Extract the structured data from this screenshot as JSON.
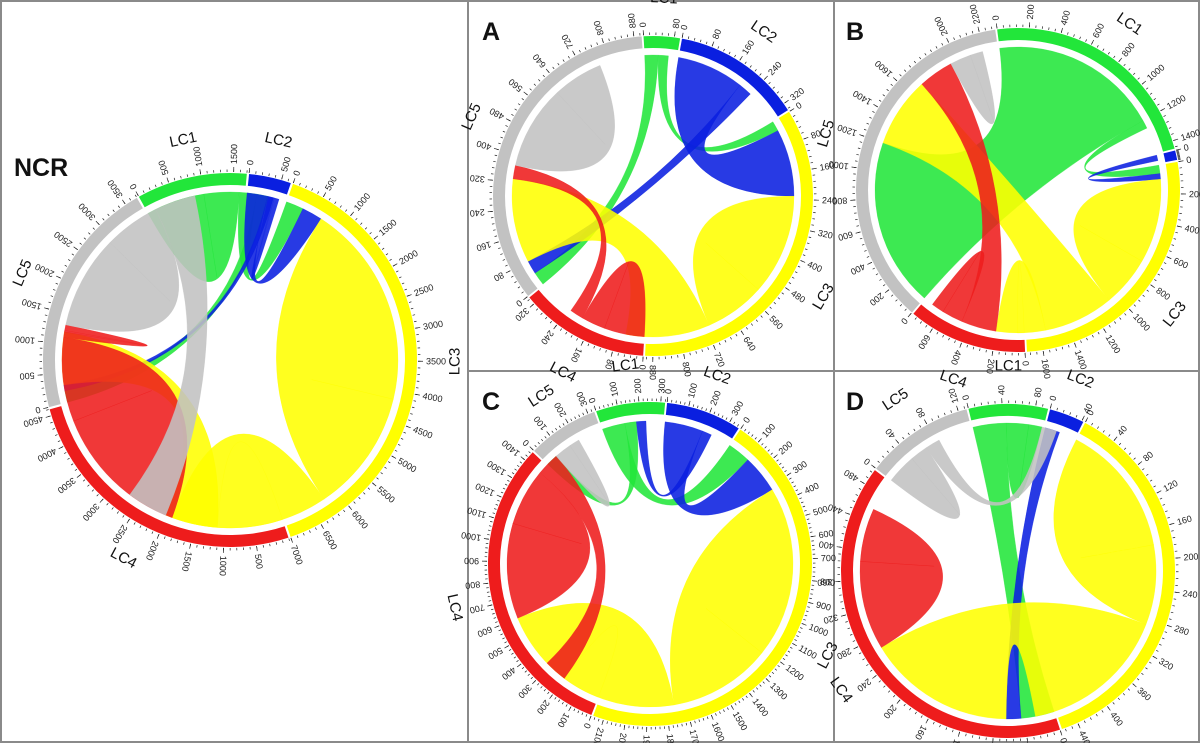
{
  "colors": {
    "LC1": "#22e63a",
    "LC2": "#0a1fe0",
    "LC3": "#ffff00",
    "LC4": "#ee1c1c",
    "LC5": "#c2c2c2",
    "frame": "#8a8a8a"
  },
  "panels": [
    {
      "id": "ncr",
      "label": "NCR",
      "segments": [
        {
          "name": "LC1",
          "total": 1700,
          "ticks": [
            0,
            500,
            1000,
            1500
          ],
          "label": "LC1"
        },
        {
          "name": "LC2",
          "total": 650,
          "ticks": [
            0,
            500
          ],
          "label": "LC2"
        },
        {
          "name": "LC3",
          "total": 7000,
          "ticks": [
            0,
            500,
            1000,
            1500,
            2000,
            2500,
            3000,
            3500,
            4000,
            4500,
            5000,
            5500,
            6000,
            6500,
            7000
          ],
          "label": "LC3"
        },
        {
          "name": "LC4",
          "total": 4600,
          "ticks": [
            500,
            1000,
            1500,
            2000,
            2500,
            3000,
            3500,
            4000,
            4500
          ],
          "label": "LC4"
        },
        {
          "name": "LC5",
          "total": 3700,
          "ticks": [
            0,
            500,
            1000,
            1500,
            2000,
            2500,
            3000,
            3500
          ],
          "label": "LC5"
        }
      ],
      "chords": [
        {
          "from": "LC1",
          "to": "LC1",
          "value": 1000
        },
        {
          "from": "LC1",
          "to": "LC3",
          "value": 300
        },
        {
          "from": "LC1",
          "to": "LC5",
          "value": 200
        },
        {
          "from": "LC2",
          "to": "LC3",
          "value": 350
        },
        {
          "from": "LC2",
          "to": "LC5",
          "value": 100
        },
        {
          "from": "LC2",
          "to": "LC1",
          "value": 100
        },
        {
          "from": "LC3",
          "to": "LC3",
          "value": 3500
        },
        {
          "from": "LC3",
          "to": "LC4",
          "value": 1900
        },
        {
          "from": "LC3",
          "to": "LC5",
          "value": 900
        },
        {
          "from": "LC4",
          "to": "LC4",
          "value": 2400
        },
        {
          "from": "LC4",
          "to": "LC5",
          "value": 120
        },
        {
          "from": "LC5",
          "to": "LC5",
          "value": 1600
        },
        {
          "from": "LC5",
          "to": "LC3",
          "value": 700
        }
      ]
    },
    {
      "id": "a",
      "label": "A",
      "segments": [
        {
          "name": "LC1",
          "total": 95,
          "ticks": [
            0,
            80
          ],
          "label": "LC1"
        },
        {
          "name": "LC2",
          "total": 340,
          "ticks": [
            0,
            80,
            160,
            240,
            320
          ],
          "label": "LC2"
        },
        {
          "name": "LC3",
          "total": 900,
          "ticks": [
            0,
            80,
            160,
            240,
            320,
            400,
            480,
            560,
            640,
            720,
            800,
            880
          ],
          "label": "LC3"
        },
        {
          "name": "LC4",
          "total": 340,
          "ticks": [
            0,
            80,
            160,
            240,
            320
          ],
          "label": "LC4"
        },
        {
          "name": "LC5",
          "total": 900,
          "ticks": [
            0,
            80,
            160,
            240,
            320,
            400,
            480,
            560,
            640,
            720,
            800,
            880
          ],
          "label": "LC5"
        }
      ],
      "chords": [
        {
          "from": "LC1",
          "to": "LC5",
          "value": 40
        },
        {
          "from": "LC1",
          "to": "LC3",
          "value": 30
        },
        {
          "from": "LC2",
          "to": "LC3",
          "value": 200
        },
        {
          "from": "LC2",
          "to": "LC5",
          "value": 40
        },
        {
          "from": "LC3",
          "to": "LC3",
          "value": 300
        },
        {
          "from": "LC3",
          "to": "LC5",
          "value": 250
        },
        {
          "from": "LC4",
          "to": "LC4",
          "value": 120
        },
        {
          "from": "LC4",
          "to": "LC5",
          "value": 40
        },
        {
          "from": "LC5",
          "to": "LC5",
          "value": 250
        }
      ]
    },
    {
      "id": "b",
      "label": "B",
      "segments": [
        {
          "name": "LC1",
          "total": 1450,
          "ticks": [
            0,
            200,
            400,
            600,
            800,
            1000,
            1200,
            1400
          ],
          "label": "LC1"
        },
        {
          "name": "LC2",
          "total": 60,
          "ticks": [
            0
          ],
          "label": "LC2"
        },
        {
          "name": "LC3",
          "total": 1700,
          "ticks": [
            0,
            200,
            400,
            600,
            800,
            1000,
            1200,
            1400,
            1600
          ],
          "label": "LC3"
        },
        {
          "name": "LC4",
          "total": 750,
          "ticks": [
            0,
            200,
            400,
            600
          ],
          "label": "LC4"
        },
        {
          "name": "LC5",
          "total": 2300,
          "ticks": [
            0,
            200,
            400,
            600,
            800,
            1000,
            1200,
            1400,
            1600,
            2000,
            2200
          ],
          "label": "LC5"
        }
      ],
      "chords": [
        {
          "from": "LC1",
          "to": "LC5",
          "value": 1200
        },
        {
          "from": "LC1",
          "to": "LC3",
          "value": 60
        },
        {
          "from": "LC2",
          "to": "LC3",
          "value": 40
        },
        {
          "from": "LC3",
          "to": "LC3",
          "value": 600
        },
        {
          "from": "LC3",
          "to": "LC5",
          "value": 500
        },
        {
          "from": "LC3",
          "to": "LC4",
          "value": 200
        },
        {
          "from": "LC4",
          "to": "LC5",
          "value": 250
        },
        {
          "from": "LC4",
          "to": "LC4",
          "value": 150
        },
        {
          "from": "LC5",
          "to": "LC5",
          "value": 150
        }
      ]
    },
    {
      "id": "c",
      "label": "C",
      "segments": [
        {
          "name": "LC1",
          "total": 320,
          "ticks": [
            0,
            100,
            200,
            300
          ],
          "label": "LC1"
        },
        {
          "name": "LC2",
          "total": 350,
          "ticks": [
            0,
            100,
            200,
            300
          ],
          "label": "LC2"
        },
        {
          "name": "LC3",
          "total": 2150,
          "ticks": [
            0,
            100,
            200,
            300,
            400,
            500,
            600,
            700,
            800,
            900,
            1000,
            1100,
            1200,
            1300,
            1400,
            1500,
            1600,
            1700,
            1800,
            1900,
            2000,
            2100
          ],
          "label": "LC3"
        },
        {
          "name": "LC4",
          "total": 1450,
          "ticks": [
            0,
            100,
            200,
            300,
            400,
            500,
            600,
            700,
            800,
            900,
            1000,
            1100,
            1200,
            1300,
            1400
          ],
          "label": "LC4"
        },
        {
          "name": "LC5",
          "total": 330,
          "ticks": [
            0,
            100,
            200,
            300
          ],
          "label": "LC5"
        }
      ],
      "chords": [
        {
          "from": "LC1",
          "to": "LC3",
          "value": 120
        },
        {
          "from": "LC1",
          "to": "LC5",
          "value": 60
        },
        {
          "from": "LC2",
          "to": "LC3",
          "value": 200
        },
        {
          "from": "LC2",
          "to": "LC1",
          "value": 50
        },
        {
          "from": "LC3",
          "to": "LC3",
          "value": 900
        },
        {
          "from": "LC3",
          "to": "LC4",
          "value": 600
        },
        {
          "from": "LC4",
          "to": "LC4",
          "value": 500
        },
        {
          "from": "LC4",
          "to": "LC3",
          "value": 120
        },
        {
          "from": "LC5",
          "to": "LC5",
          "value": 90
        }
      ]
    },
    {
      "id": "d",
      "label": "D",
      "segments": [
        {
          "name": "LC1",
          "total": 95,
          "ticks": [
            0,
            40,
            80
          ],
          "label": "LC1"
        },
        {
          "name": "LC2",
          "total": 42,
          "ticks": [
            0,
            40
          ],
          "label": "LC2"
        },
        {
          "name": "LC3",
          "total": 460,
          "ticks": [
            0,
            40,
            80,
            120,
            160,
            200,
            240,
            280,
            320,
            360,
            400,
            440
          ],
          "label": "LC3"
        },
        {
          "name": "LC4",
          "total": 500,
          "ticks": [
            0,
            40,
            80,
            120,
            160,
            200,
            240,
            280,
            320,
            360,
            400,
            440,
            480
          ],
          "label": "LC4"
        },
        {
          "name": "LC5",
          "total": 130,
          "ticks": [
            0,
            40,
            80,
            120
          ],
          "label": "LC5"
        }
      ],
      "chords": [
        {
          "from": "LC1",
          "to": "LC4",
          "value": 45
        },
        {
          "from": "LC1",
          "to": "LC1",
          "value": 30
        },
        {
          "from": "LC2",
          "to": "LC4",
          "value": 20
        },
        {
          "from": "LC3",
          "to": "LC3",
          "value": 180
        },
        {
          "from": "LC3",
          "to": "LC4",
          "value": 200
        },
        {
          "from": "LC4",
          "to": "LC4",
          "value": 120
        },
        {
          "from": "LC5",
          "to": "LC5",
          "value": 40
        },
        {
          "from": "LC5",
          "to": "LC1",
          "value": 20
        }
      ]
    }
  ]
}
